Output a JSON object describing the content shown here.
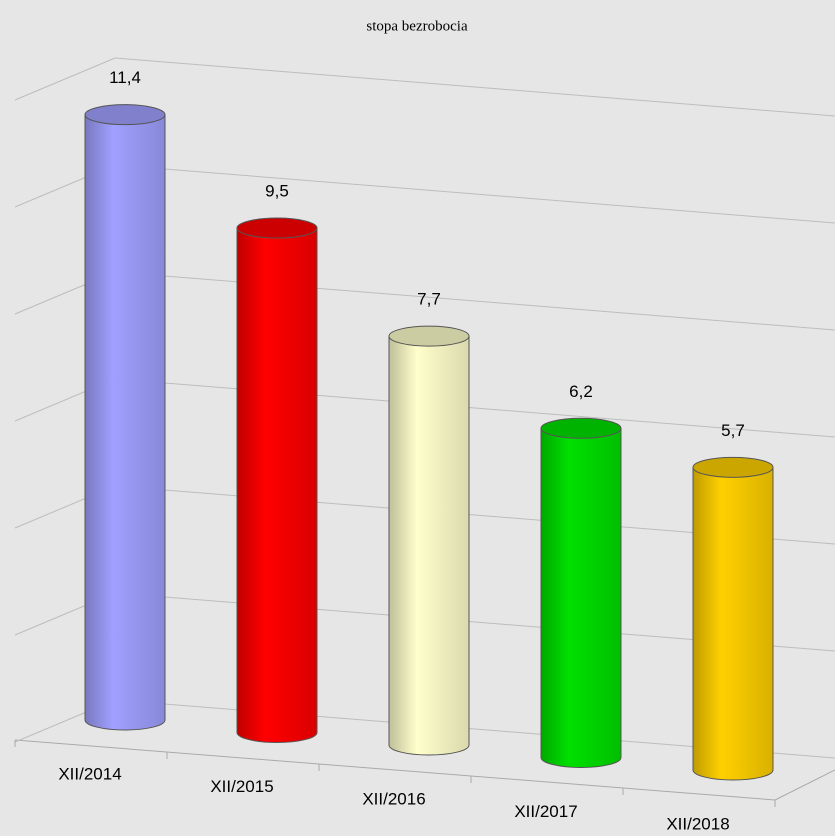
{
  "chart_data": {
    "type": "bar3d",
    "title": "stopa bezrobocia",
    "categories": [
      "XII/2014",
      "XII/2015",
      "XII/2016",
      "XII/2017",
      "XII/2018"
    ],
    "values": [
      11.4,
      9.5,
      7.7,
      6.2,
      5.7
    ],
    "value_labels": [
      "11,4",
      "9,5",
      "7,7",
      "6,2",
      "5,7"
    ],
    "colors": [
      "#a0a0ff",
      "#ff0000",
      "#ffffcc",
      "#00e000",
      "#ffd000"
    ],
    "ylim": [
      0,
      12
    ],
    "yticks": [
      0,
      2,
      4,
      6,
      8,
      10,
      12
    ],
    "grid": true
  }
}
